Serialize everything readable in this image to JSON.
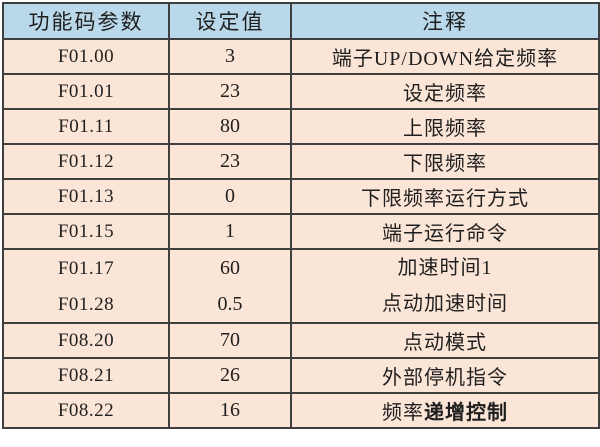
{
  "chart_data": {
    "type": "table",
    "columns": [
      "功能码参数",
      "设定值",
      "注释"
    ],
    "rows": [
      {
        "code": "F01.00",
        "value": "3",
        "note": "端子UP/DOWN给定频率"
      },
      {
        "code": "F01.01",
        "value": "23",
        "note": "设定频率"
      },
      {
        "code": "F01.11",
        "value": "80",
        "note": "上限频率"
      },
      {
        "code": "F01.12",
        "value": "23",
        "note": "下限频率"
      },
      {
        "code": "F01.13",
        "value": "0",
        "note": "下限频率运行方式"
      },
      {
        "code": "F01.15",
        "value": "1",
        "note": "端子运行命令"
      },
      {
        "code": "F01.17",
        "value": "60",
        "note": "加速时间1"
      },
      {
        "code": "F01.28",
        "value": "0.5",
        "note": "点动加速时间"
      },
      {
        "code": "F08.20",
        "value": "70",
        "note": "点动模式"
      },
      {
        "code": "F08.21",
        "value": "26",
        "note": "外部停机指令"
      },
      {
        "code": "F08.22",
        "value": "16",
        "note": "频率递增控制",
        "note_normal": "频率",
        "note_bold": "递增控制"
      }
    ],
    "layout": {
      "merged_row_indices": [
        6,
        7
      ],
      "grid": "on",
      "header_style": "blue-fill",
      "body_style": "peach-fill"
    }
  },
  "colors": {
    "header_bg": "#b9d8ea",
    "row_bg": "#fbe5d7",
    "border": "#3f3f3f",
    "text": "#1f1f1f",
    "page_bg": "#ffffff"
  }
}
